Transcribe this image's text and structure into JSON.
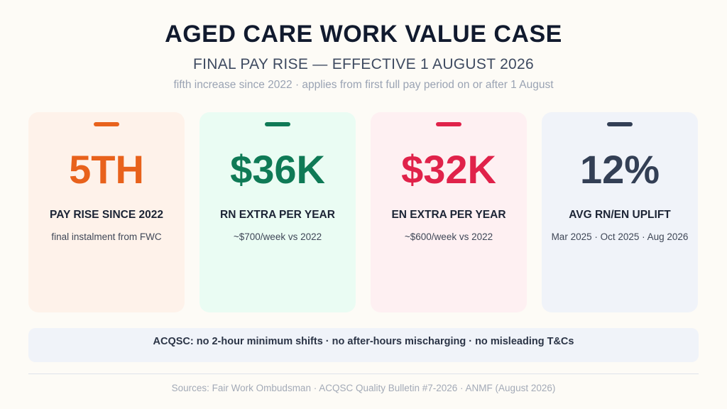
{
  "header": {
    "title": "AGED CARE WORK VALUE CASE",
    "subtitle": "FINAL PAY RISE — EFFECTIVE 1 AUGUST 2026",
    "tagline": "fifth increase since 2022 · applies from first full pay period on or after 1 August"
  },
  "cards": [
    {
      "value": "5TH",
      "label": "PAY RISE SINCE 2022",
      "note": "final instalment from FWC",
      "accent": "#e8621c",
      "background": "#fef2ea"
    },
    {
      "value": "$36K",
      "label": "RN EXTRA PER YEAR",
      "note": "~$700/week vs 2022",
      "accent": "#0f7a56",
      "background": "#eafcf3"
    },
    {
      "value": "$32K",
      "label": "EN EXTRA PER YEAR",
      "note": "~$600/week vs 2022",
      "accent": "#e0224a",
      "background": "#fef0f2"
    },
    {
      "value": "12%",
      "label": "AVG RN/EN UPLIFT",
      "note": "Mar 2025 · Oct 2025 · Aug 2026",
      "accent": "#333f55",
      "background": "#f0f3f9"
    }
  ],
  "banner": {
    "text": "ACQSC: no 2-hour minimum shifts · no after-hours mischarging · no misleading T&Cs"
  },
  "footer": {
    "sources": "Sources: Fair Work Ombudsman · ACQSC Quality Bulletin #7-2026 · ANMF (August 2026)"
  }
}
